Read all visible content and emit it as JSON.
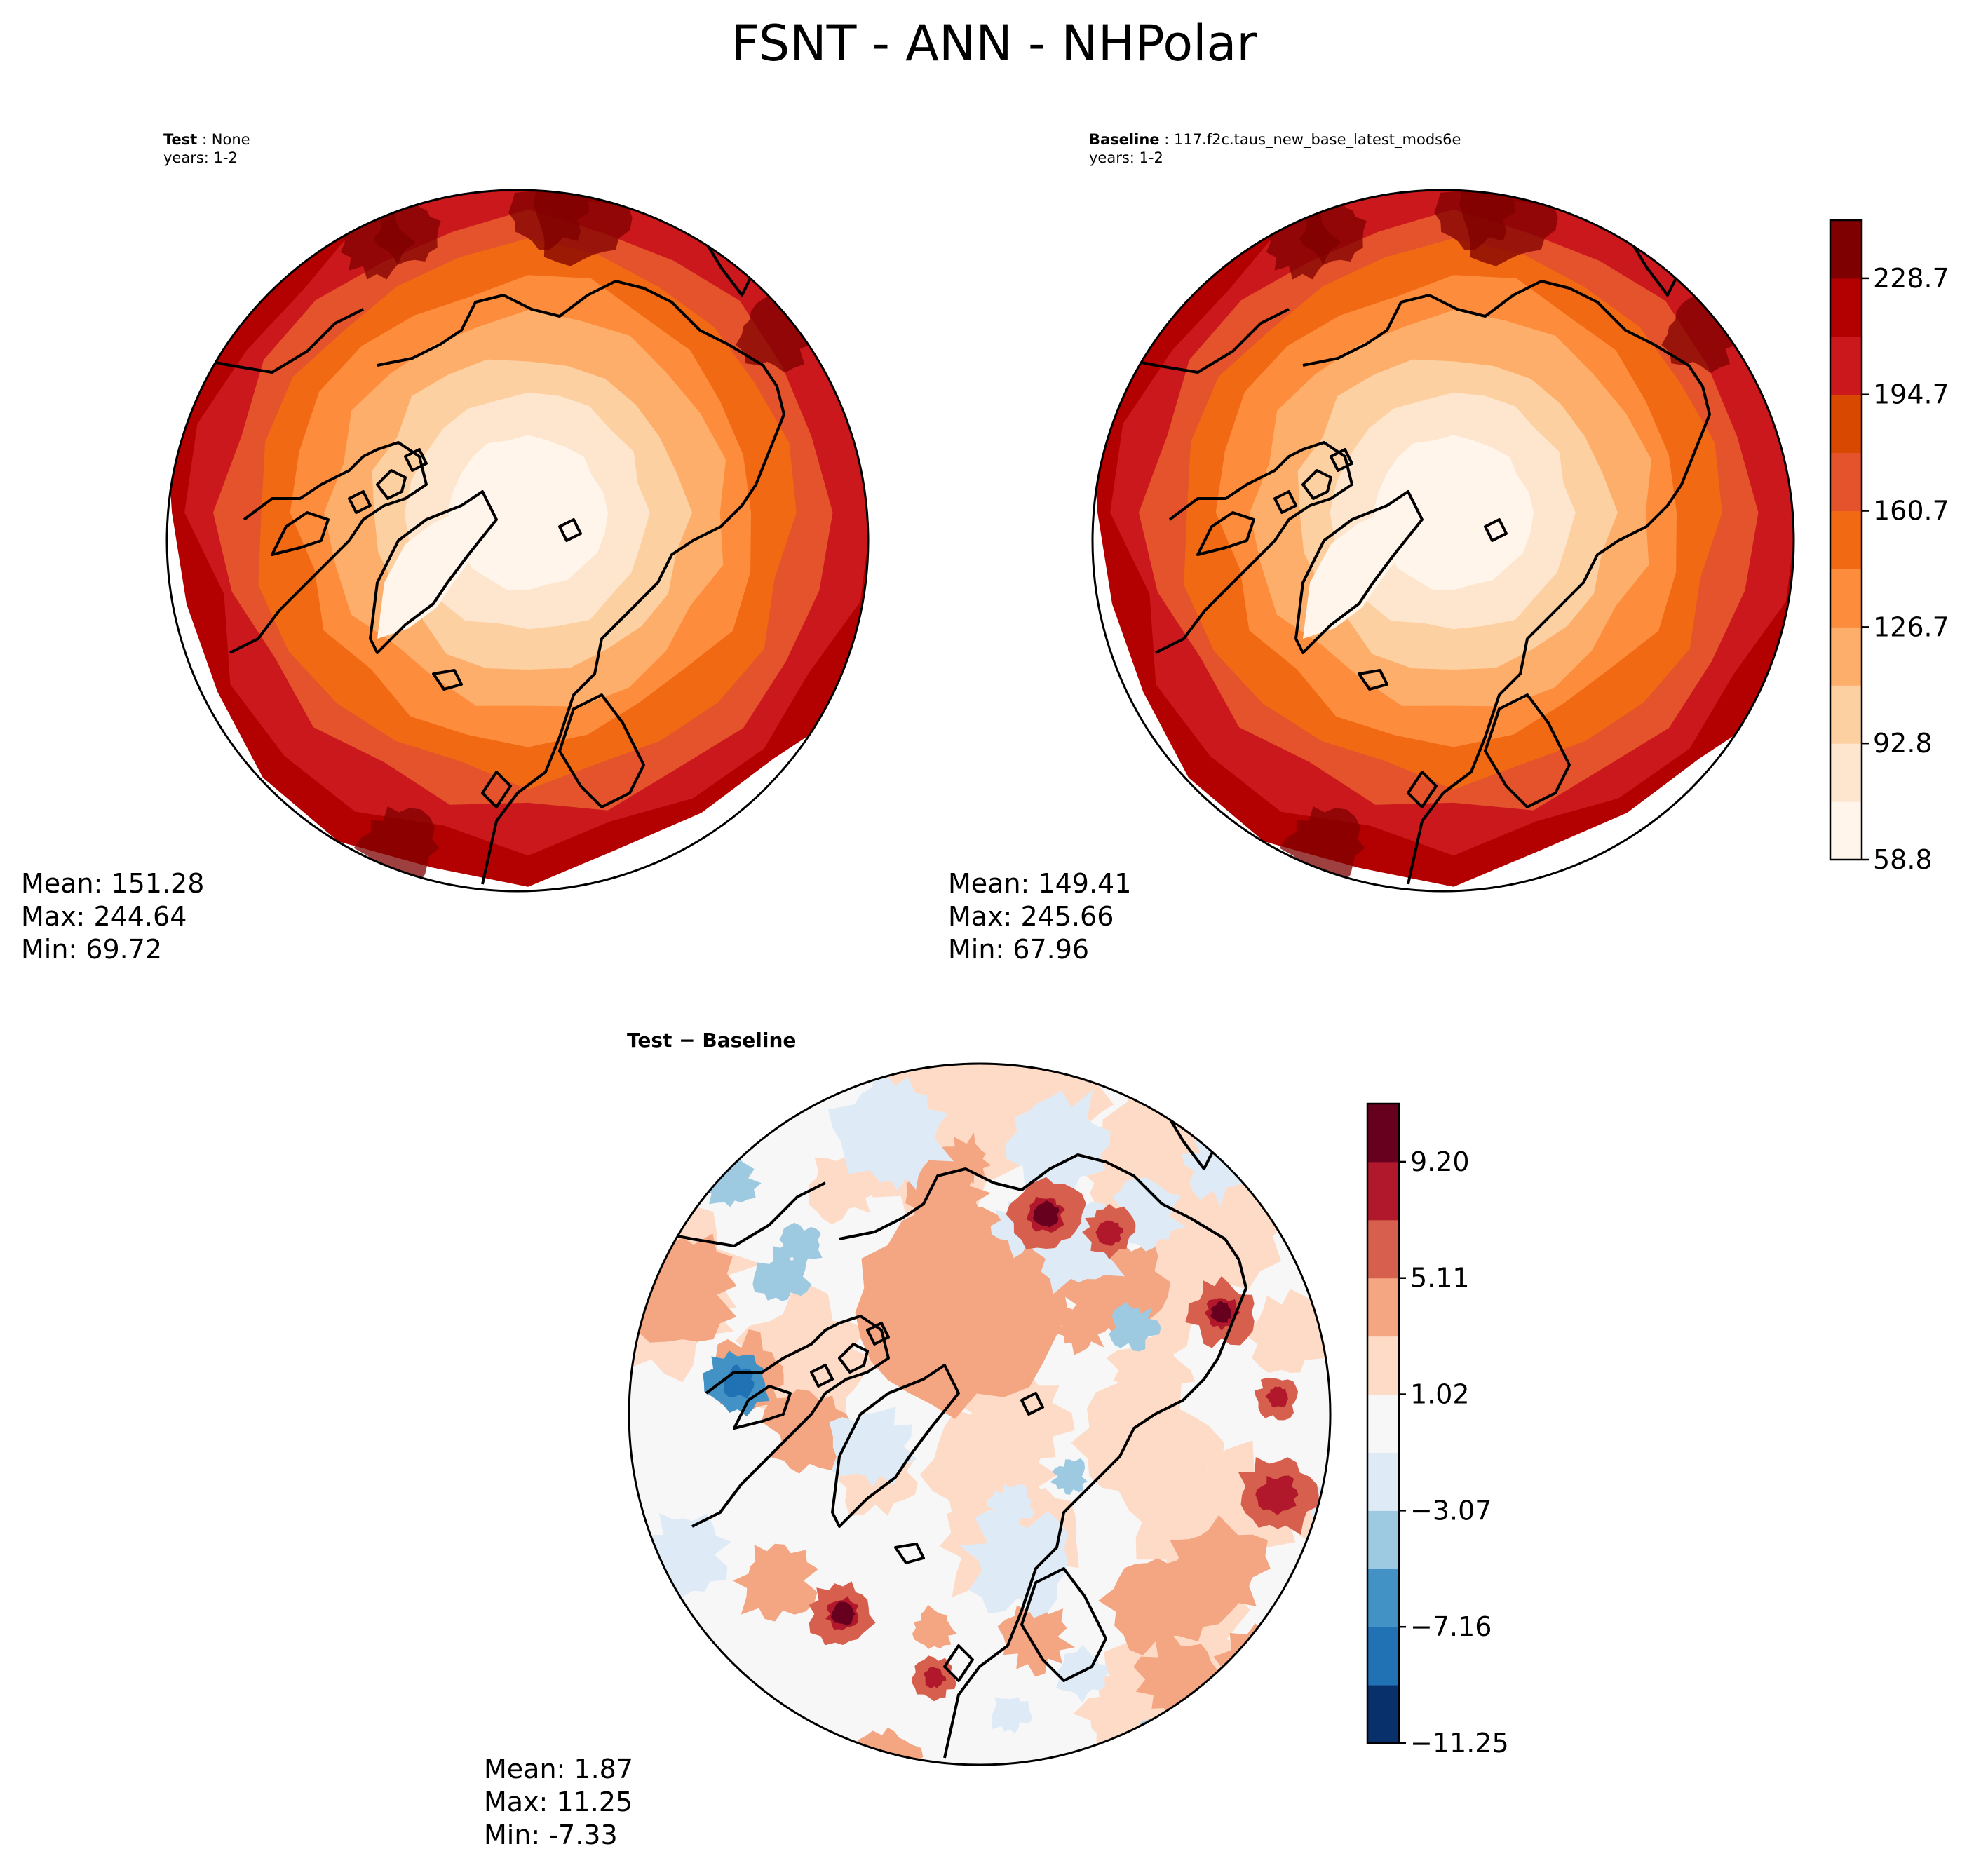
{
  "title": "FSNT - ANN - NHPolar",
  "panels": {
    "test": {
      "label": "Test",
      "sep": " : ",
      "name": "None",
      "years": "years: 1-2",
      "mean": "Mean: 151.28",
      "max": "Max: 244.64",
      "min": "Min: 69.72"
    },
    "baseline": {
      "label": "Baseline",
      "sep": " : ",
      "name": "117.f2c.taus_new_base_latest_mods6e",
      "years": "years: 1-2",
      "mean": "Mean: 149.41",
      "max": "Max: 245.66",
      "min": "Min: 67.96"
    },
    "diff": {
      "title": "Test − Baseline",
      "mean": "Mean:  1.87",
      "max": "Max: 11.25",
      "min": "Min: -7.33"
    }
  },
  "colors": {
    "main_levels": [
      "#fff5eb",
      "#fee6ce",
      "#fdd0a2",
      "#fdae6b",
      "#fd8d3c",
      "#f16913",
      "#e5532c",
      "#d94801",
      "#cb181d",
      "#b30000",
      "#7f0000"
    ],
    "diff_levels": [
      "#08306b",
      "#2171b5",
      "#4292c6",
      "#9ecae1",
      "#deebf7",
      "#f7f7f7",
      "#fddbc7",
      "#f4a582",
      "#d6604d",
      "#b2182b",
      "#67001f"
    ]
  },
  "chart_data": [
    {
      "type": "heatmap",
      "title": "Test : None",
      "projection": "north-polar-stereographic",
      "variable": "FSNT",
      "stats": {
        "mean": 151.28,
        "max": 244.64,
        "min": 69.72
      },
      "color_range": [
        58.8,
        245.66
      ]
    },
    {
      "type": "heatmap",
      "title": "Baseline : 117.f2c.taus_new_base_latest_mods6e",
      "projection": "north-polar-stereographic",
      "variable": "FSNT",
      "stats": {
        "mean": 149.41,
        "max": 245.66,
        "min": 67.96
      },
      "colorbar": {
        "ticks": [
          "58.8",
          "92.8",
          "126.7",
          "160.7",
          "194.7",
          "228.7"
        ],
        "range": [
          58.8,
          245.66
        ],
        "position": "right"
      }
    },
    {
      "type": "heatmap",
      "title": "Test − Baseline",
      "projection": "north-polar-stereographic",
      "variable": "FSNT difference",
      "stats": {
        "mean": 1.87,
        "max": 11.25,
        "min": -7.33
      },
      "colorbar": {
        "ticks": [
          "−11.25",
          "−7.16",
          "−3.07",
          "1.02",
          "5.11",
          "9.20"
        ],
        "range": [
          -11.25,
          11.25
        ],
        "position": "right"
      }
    }
  ]
}
